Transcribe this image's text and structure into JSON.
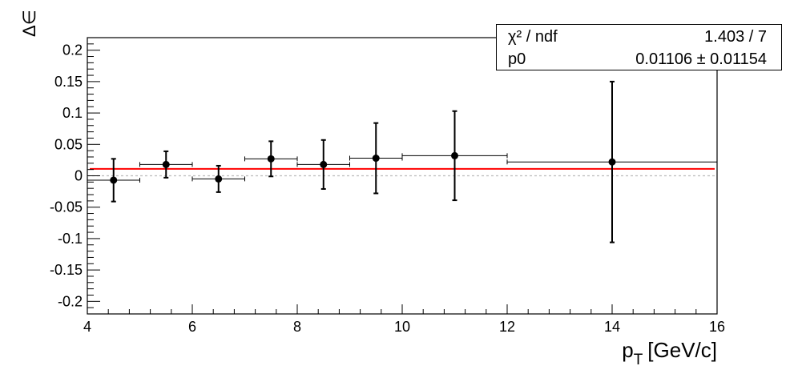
{
  "chart_data": {
    "type": "scatter",
    "xlabel": "p",
    "xlabel_sub": "T",
    "xlabel_unit": "[GeV/c]",
    "ylabel": "Δ∈",
    "xlim": [
      4,
      16
    ],
    "ylim": [
      -0.22,
      0.22
    ],
    "xticks": [
      4,
      6,
      8,
      10,
      12,
      14,
      16
    ],
    "yticks": [
      -0.2,
      -0.15,
      -0.1,
      -0.05,
      0,
      0.05,
      0.1,
      0.15,
      0.2
    ],
    "ytick_labels": [
      "-0.2",
      "-0.15",
      "-0.1",
      "-0.05",
      "0",
      "0.05",
      "0.1",
      "0.15",
      "0.2"
    ],
    "points": [
      {
        "x": 4.5,
        "xlow": 4,
        "xhigh": 5,
        "y": -0.007,
        "yerr": 0.034
      },
      {
        "x": 5.5,
        "xlow": 5,
        "xhigh": 6,
        "y": 0.018,
        "yerr": 0.021
      },
      {
        "x": 6.5,
        "xlow": 6,
        "xhigh": 7,
        "y": -0.005,
        "yerr": 0.021
      },
      {
        "x": 7.5,
        "xlow": 7,
        "xhigh": 8,
        "y": 0.027,
        "yerr": 0.028
      },
      {
        "x": 8.5,
        "xlow": 8,
        "xhigh": 9,
        "y": 0.018,
        "yerr": 0.039
      },
      {
        "x": 9.5,
        "xlow": 9,
        "xhigh": 10,
        "y": 0.028,
        "yerr": 0.056
      },
      {
        "x": 11,
        "xlow": 10,
        "xhigh": 12,
        "y": 0.032,
        "yerr": 0.071
      },
      {
        "x": 14,
        "xlow": 12,
        "xhigh": 16,
        "y": 0.022,
        "yerr": 0.128
      }
    ],
    "fit": {
      "value": 0.01106,
      "color": "#ff0000"
    },
    "reference_line": {
      "y": 0,
      "style": "dotted",
      "color": "#bbbbbb"
    },
    "stats": {
      "chi2_label": "χ² / ndf",
      "chi2_value": "1.403 / 7",
      "p0_label": "p0",
      "p0_value": "0.01106 ± 0.01154"
    }
  }
}
